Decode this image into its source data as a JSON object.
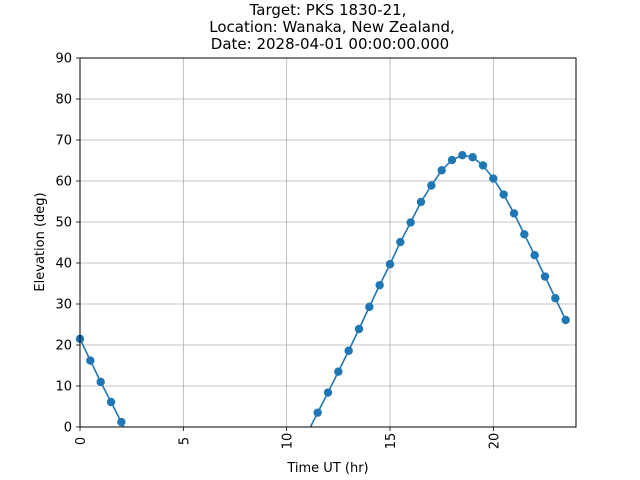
{
  "chart_data": {
    "type": "line",
    "title_lines": [
      "Target: PKS 1830-21,",
      "Location: Wanaka, New Zealand,",
      "Date: 2028-04-01 00:00:00.000"
    ],
    "xlabel": "Time UT (hr)",
    "ylabel": "Elevation (deg)",
    "xlim": [
      0,
      24
    ],
    "ylim": [
      0,
      90
    ],
    "xticks": [
      0,
      5,
      10,
      15,
      20
    ],
    "yticks": [
      0,
      10,
      20,
      30,
      40,
      50,
      60,
      70,
      80,
      90
    ],
    "grid": true,
    "line_color": "#1f77b4",
    "segments": [
      {
        "x": [
          0,
          0.5,
          1,
          1.5,
          2
        ],
        "y": [
          21.5,
          16.2,
          11.0,
          6.1,
          1.2
        ]
      },
      {
        "x": [
          11.5,
          12,
          12.5,
          13,
          13.5,
          14,
          14.5,
          15,
          15.5,
          16,
          16.5,
          17,
          17.5,
          18,
          18.5,
          19,
          19.5,
          20,
          20.5,
          21,
          21.5,
          22,
          22.5,
          23,
          23.5
        ],
        "y": [
          3.5,
          8.4,
          13.5,
          18.6,
          23.9,
          29.3,
          34.6,
          39.7,
          45.1,
          49.9,
          54.9,
          58.9,
          62.6,
          65.1,
          66.3,
          65.8,
          63.8,
          60.6,
          56.7,
          52.1,
          47.0,
          41.9,
          36.7,
          31.4,
          26.1
        ]
      }
    ]
  }
}
